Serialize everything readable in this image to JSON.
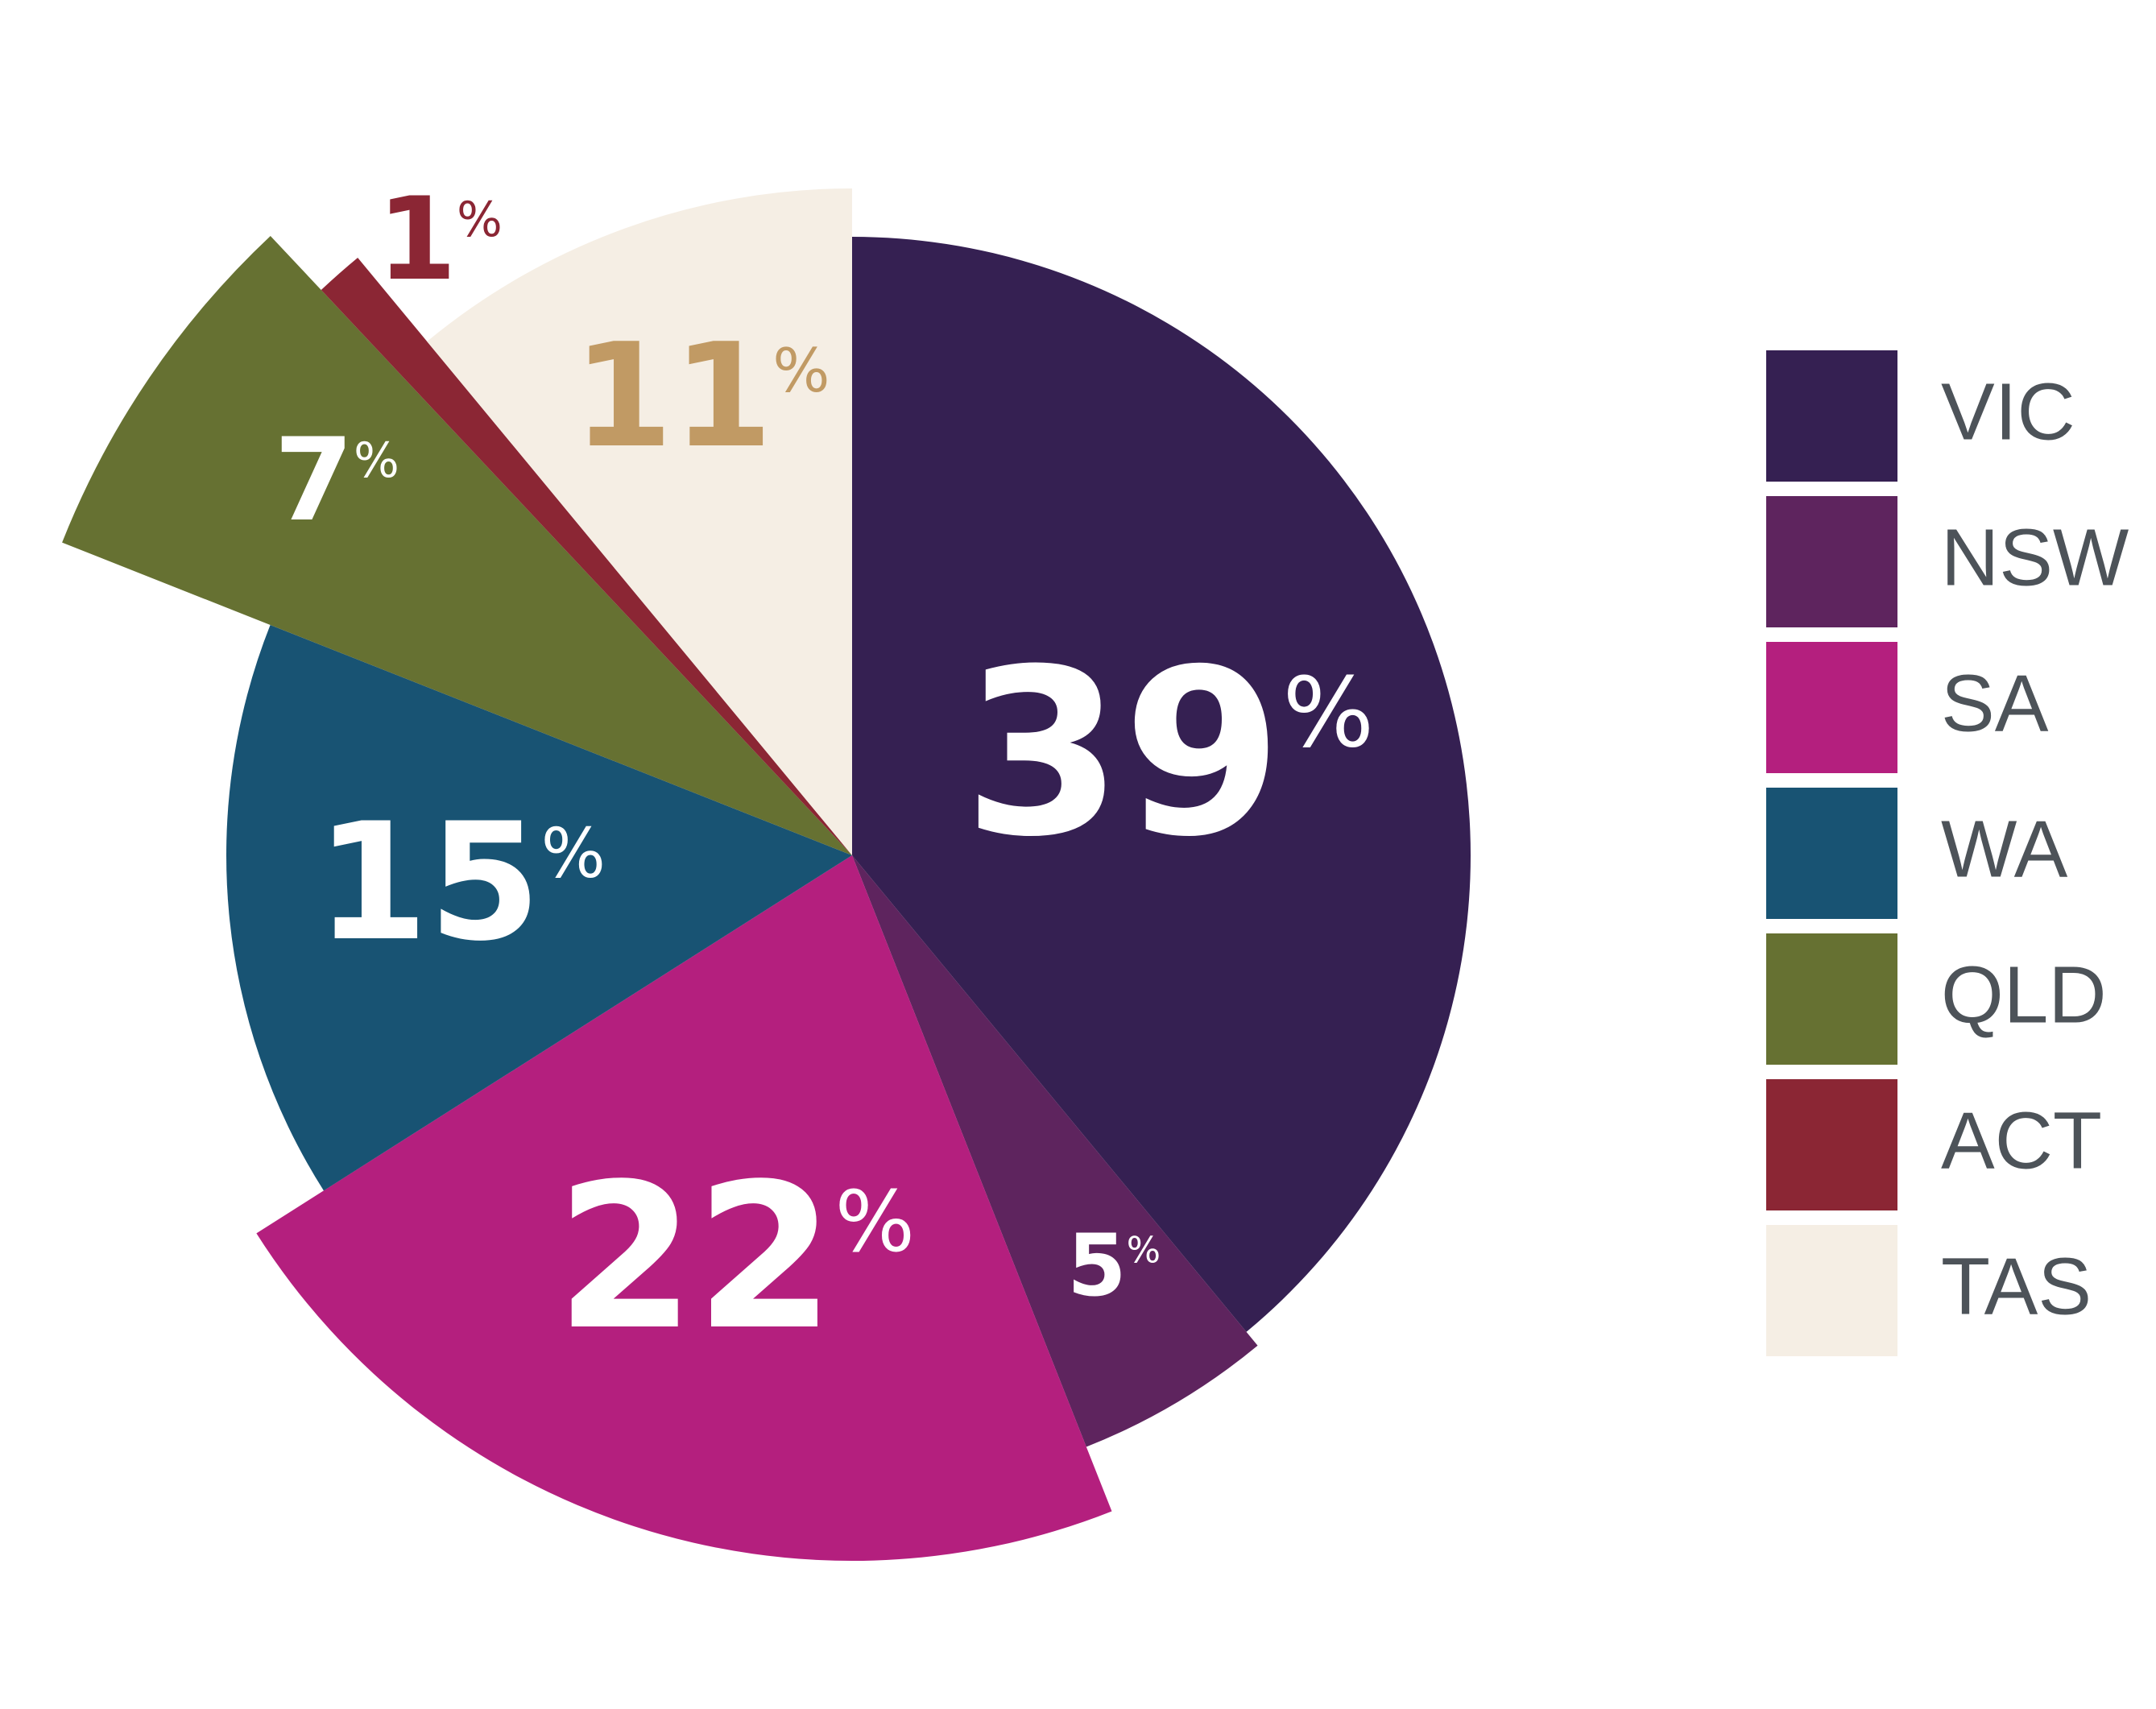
{
  "chart_data": {
    "type": "pie",
    "categories": [
      "VIC",
      "NSW",
      "SA",
      "WA",
      "QLD",
      "ACT",
      "TAS"
    ],
    "values": [
      39,
      5,
      22,
      15,
      7,
      1,
      11
    ],
    "value_labels": [
      "39%",
      "5%",
      "22%",
      "15%",
      "7%",
      "1%",
      "11%"
    ],
    "colors": [
      "#352052",
      "#5e245e",
      "#b41f7e",
      "#185373",
      "#667132",
      "#8b2634",
      "#f5eee4"
    ],
    "legend": "right"
  }
}
